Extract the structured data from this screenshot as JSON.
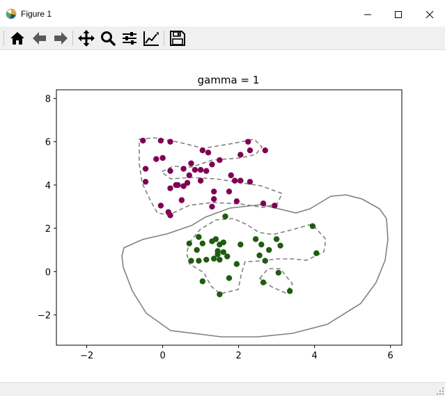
{
  "window": {
    "title": "Figure 1",
    "icon": "matplotlib-figure-icon",
    "controls": [
      "minimize-icon",
      "maximize-icon",
      "close-icon"
    ]
  },
  "toolbar": {
    "buttons": [
      {
        "name": "home-button",
        "icon": "home-icon"
      },
      {
        "name": "back-button",
        "icon": "arrow-left-icon"
      },
      {
        "name": "forward-button",
        "icon": "arrow-right-icon"
      },
      {
        "name": "pan-button",
        "icon": "move-icon"
      },
      {
        "name": "zoom-button",
        "icon": "magnifier-icon"
      },
      {
        "name": "configure-subplots-button",
        "icon": "sliders-icon"
      },
      {
        "name": "edit-axis-button",
        "icon": "line-chart-icon"
      },
      {
        "name": "save-button",
        "icon": "floppy-disk-icon"
      }
    ]
  },
  "chart_data": {
    "type": "scatter",
    "title": "gamma = 1",
    "xlabel": "",
    "ylabel": "",
    "xlim": [
      -2.8,
      6.3
    ],
    "ylim": [
      -3.4,
      8.4
    ],
    "xticks": [
      -2,
      0,
      2,
      4,
      6
    ],
    "yticks": [
      -2,
      0,
      2,
      4,
      6,
      8
    ],
    "grid": false,
    "colors": {
      "class_a": "#800055",
      "class_b": "#1f5c12",
      "solid_contour": "#808080",
      "dashed_contour": "#808080"
    },
    "series": [
      {
        "color": "#800055",
        "points": [
          [
            -0.52,
            6.05
          ],
          [
            -0.05,
            6.05
          ],
          [
            0.2,
            6.0
          ],
          [
            -0.17,
            5.2
          ],
          [
            0.0,
            5.25
          ],
          [
            -0.45,
            4.75
          ],
          [
            0.2,
            4.65
          ],
          [
            -0.45,
            4.15
          ],
          [
            0.55,
            4.75
          ],
          [
            0.75,
            5.0
          ],
          [
            0.85,
            4.7
          ],
          [
            1.0,
            4.7
          ],
          [
            1.05,
            5.6
          ],
          [
            1.15,
            4.65
          ],
          [
            1.2,
            5.5
          ],
          [
            1.3,
            4.95
          ],
          [
            1.5,
            5.15
          ],
          [
            1.8,
            4.45
          ],
          [
            1.9,
            4.2
          ],
          [
            2.05,
            4.2
          ],
          [
            2.05,
            5.4
          ],
          [
            2.3,
            4.15
          ],
          [
            2.3,
            5.6
          ],
          [
            2.25,
            6.0
          ],
          [
            2.7,
            5.6
          ],
          [
            0.4,
            4.0
          ],
          [
            0.55,
            3.95
          ],
          [
            0.65,
            4.1
          ],
          [
            0.7,
            4.45
          ],
          [
            0.35,
            4.0
          ],
          [
            0.2,
            3.85
          ],
          [
            1.0,
            4.2
          ],
          [
            1.35,
            3.7
          ],
          [
            1.75,
            3.7
          ],
          [
            0.5,
            3.3
          ],
          [
            1.35,
            3.35
          ],
          [
            1.3,
            3.0
          ],
          [
            1.95,
            3.25
          ],
          [
            -0.05,
            3.05
          ],
          [
            0.15,
            2.75
          ],
          [
            0.2,
            2.6
          ],
          [
            2.65,
            3.15
          ],
          [
            2.95,
            3.05
          ]
        ]
      },
      {
        "color": "#1f5c12",
        "points": [
          [
            1.65,
            2.55
          ],
          [
            0.95,
            1.6
          ],
          [
            0.7,
            1.3
          ],
          [
            0.9,
            1.0
          ],
          [
            1.05,
            1.3
          ],
          [
            1.3,
            1.4
          ],
          [
            1.4,
            1.5
          ],
          [
            1.5,
            1.25
          ],
          [
            1.6,
            1.35
          ],
          [
            1.45,
            0.95
          ],
          [
            1.45,
            0.8
          ],
          [
            1.6,
            0.9
          ],
          [
            1.7,
            0.7
          ],
          [
            1.35,
            0.6
          ],
          [
            1.5,
            0.55
          ],
          [
            1.15,
            0.55
          ],
          [
            0.95,
            0.5
          ],
          [
            0.75,
            0.5
          ],
          [
            2.05,
            1.25
          ],
          [
            2.45,
            1.5
          ],
          [
            2.6,
            1.25
          ],
          [
            2.8,
            1.0
          ],
          [
            3.0,
            1.5
          ],
          [
            3.1,
            1.2
          ],
          [
            2.55,
            0.75
          ],
          [
            2.7,
            0.5
          ],
          [
            1.05,
            -0.45
          ],
          [
            1.75,
            -0.3
          ],
          [
            1.5,
            -1.05
          ],
          [
            2.65,
            -0.5
          ],
          [
            3.05,
            -0.05
          ],
          [
            3.35,
            -0.9
          ],
          [
            3.95,
            2.1
          ],
          [
            4.05,
            0.85
          ],
          [
            1.95,
            0.35
          ]
        ]
      }
    ]
  }
}
